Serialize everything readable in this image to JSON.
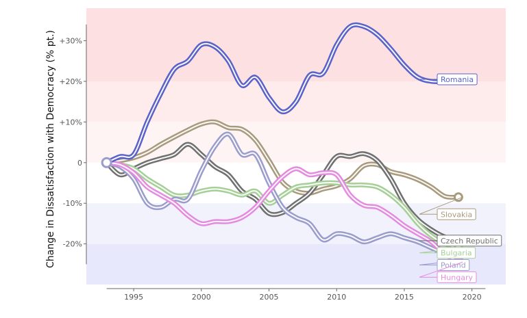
{
  "chart_data": {
    "type": "line",
    "title": "",
    "xlabel": "",
    "ylabel": "Change in Dissatisfaction with Democracy (% pt.)",
    "xlim": [
      1991.5,
      2022.5
    ],
    "ylim": [
      -31,
      38
    ],
    "x_ticks": [
      1995,
      2000,
      2005,
      2010,
      2015,
      2020
    ],
    "y_ticks": [
      {
        "value": 30,
        "label": "+30%"
      },
      {
        "value": 20,
        "label": "+20%"
      },
      {
        "value": 10,
        "label": "+10%"
      },
      {
        "value": 0,
        "label": "0"
      },
      {
        "value": -10,
        "label": "-10%"
      },
      {
        "value": -20,
        "label": "-20%"
      }
    ],
    "bands": [
      {
        "from": 20,
        "to": 38,
        "color": "#fde0e1"
      },
      {
        "from": 10,
        "to": 20,
        "color": "#feeced"
      },
      {
        "from": 0,
        "to": 10,
        "color": "#fff4f4"
      },
      {
        "from": -10,
        "to": 0,
        "color": "#ffffff"
      },
      {
        "from": -20,
        "to": -10,
        "color": "#f2f2fd"
      },
      {
        "from": -30,
        "to": -20,
        "color": "#e8e8fc"
      }
    ],
    "origin": {
      "x": 1993,
      "y": 0
    },
    "series": [
      {
        "name": "Slovakia",
        "color": "#a89a7c",
        "label_y": -12.7,
        "x": [
          1993,
          1994,
          1995,
          1996,
          1997,
          1998,
          1999,
          2000,
          2001,
          2002,
          2003,
          2004,
          2005,
          2006,
          2007,
          2008,
          2009,
          2010,
          2011,
          2012,
          2013,
          2014,
          2015,
          2016,
          2017,
          2018,
          2019
        ],
        "y": [
          0,
          0.5,
          1.2,
          2.5,
          4.5,
          6.3,
          8,
          9.5,
          10,
          8.6,
          8.2,
          5.5,
          0.5,
          -4.8,
          -7,
          -7.5,
          -6.5,
          -5.7,
          -4,
          -0.8,
          -0.5,
          -2.2,
          -3,
          -4.2,
          -6,
          -8.3,
          -8.5
        ]
      },
      {
        "name": "Czech Republic",
        "color": "#707070",
        "label_y": -19.2,
        "x": [
          1993,
          1994,
          1995,
          1996,
          1997,
          1998,
          1999,
          2000,
          2001,
          2002,
          2003,
          2004,
          2005,
          2006,
          2007,
          2008,
          2009,
          2010,
          2011,
          2012,
          2013,
          2014,
          2015,
          2016,
          2017,
          2018,
          2019
        ],
        "y": [
          0,
          -3,
          -1.5,
          0,
          1,
          2,
          4.5,
          2,
          -1,
          -3,
          -7,
          -9,
          -12.5,
          -12.3,
          -10,
          -7.5,
          -3,
          1.5,
          1.5,
          2.2,
          0.5,
          -4,
          -10,
          -14,
          -16.5,
          -18.3,
          -19.3
        ]
      },
      {
        "name": "Bulgaria",
        "color": "#a6cf98",
        "label_y": -22.2,
        "x": [
          1993,
          1994,
          1995,
          1996,
          1997,
          1998,
          1999,
          2000,
          2001,
          2002,
          2003,
          2004,
          2005,
          2006,
          2007,
          2008,
          2009,
          2010,
          2011,
          2012,
          2013,
          2014,
          2015,
          2016,
          2017,
          2018,
          2019
        ],
        "y": [
          0,
          -0.5,
          -1.5,
          -4,
          -6,
          -8,
          -8,
          -7,
          -6.5,
          -7,
          -8,
          -7,
          -10,
          -8,
          -6,
          -5.5,
          -5,
          -5,
          -5.5,
          -5.5,
          -6,
          -8,
          -11,
          -15,
          -18,
          -20,
          -21
        ]
      },
      {
        "name": "Poland",
        "color": "#9a9dcc",
        "label_y": -25.2,
        "x": [
          1993,
          1994,
          1995,
          1996,
          1997,
          1998,
          1999,
          2000,
          2001,
          2002,
          2003,
          2004,
          2005,
          2006,
          2007,
          2008,
          2009,
          2010,
          2011,
          2012,
          2013,
          2014,
          2015,
          2016,
          2017,
          2018,
          2019
        ],
        "y": [
          0,
          -1,
          -4,
          -10,
          -11,
          -9,
          -9,
          -2,
          4,
          7,
          2,
          2,
          -5,
          -11,
          -13.5,
          -15,
          -19,
          -17.5,
          -18,
          -19.5,
          -18.5,
          -17.5,
          -18.5,
          -19.5,
          -21,
          -22.5,
          -24
        ]
      },
      {
        "name": "Hungary",
        "color": "#e48be0",
        "label_y": -28.2,
        "x": [
          1993,
          1994,
          1995,
          1996,
          1997,
          1998,
          1999,
          2000,
          2001,
          2002,
          2003,
          2004,
          2005,
          2006,
          2007,
          2008,
          2009,
          2010,
          2011,
          2012,
          2013,
          2014,
          2015,
          2016,
          2017,
          2018,
          2019
        ],
        "y": [
          0,
          -0.5,
          -2.5,
          -6,
          -8,
          -10,
          -13,
          -15,
          -14.5,
          -14.5,
          -13.5,
          -11,
          -7,
          -3.5,
          -1.5,
          -3,
          -2.5,
          -3,
          -8,
          -10.5,
          -11,
          -13,
          -15.5,
          -17.5,
          -19.5,
          -22.5,
          -24.5
        ]
      },
      {
        "name": "Romania",
        "color": "#5a62c8",
        "label_y": 20.5,
        "x": [
          1993,
          1994,
          1995,
          1996,
          1997,
          1998,
          1999,
          2000,
          2001,
          2002,
          2003,
          2004,
          2005,
          2006,
          2007,
          2008,
          2009,
          2010,
          2011,
          2012,
          2013,
          2014,
          2015,
          2016,
          2017,
          2018,
          2019
        ],
        "y": [
          0,
          1.5,
          2,
          10,
          17,
          23,
          25,
          29,
          28.5,
          25,
          19,
          21,
          16,
          12.5,
          15,
          21.5,
          22,
          29,
          33.5,
          33.5,
          31.5,
          28,
          24,
          21,
          20,
          20,
          20.5
        ]
      }
    ]
  }
}
